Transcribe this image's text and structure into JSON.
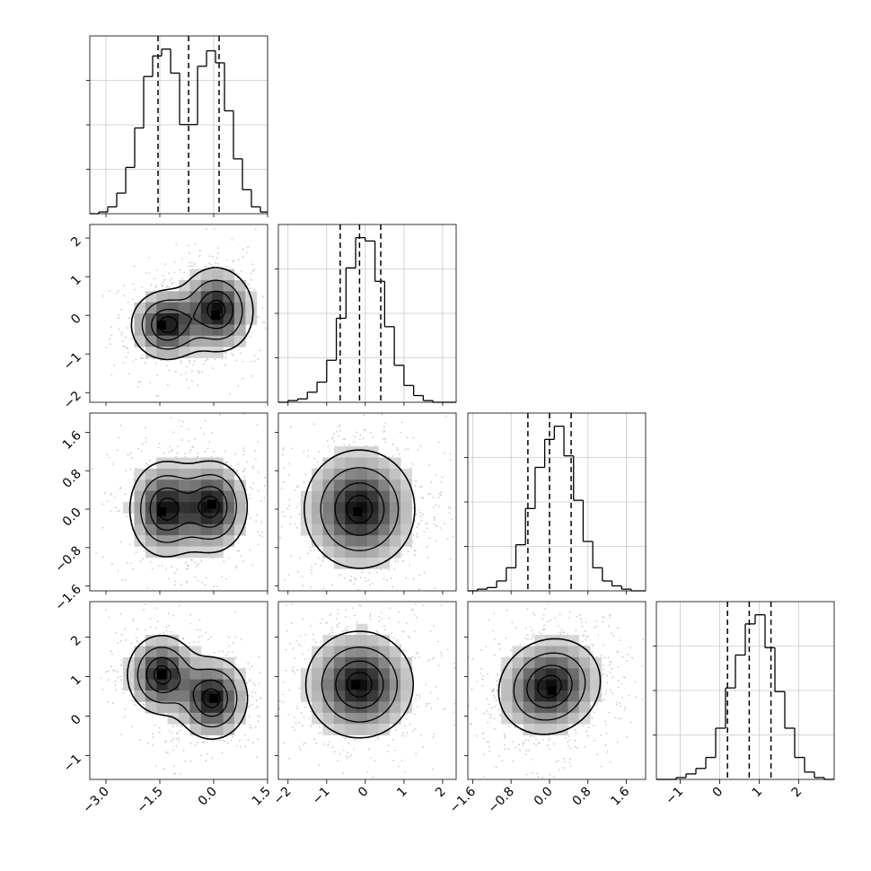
{
  "chart_data": {
    "type": "corner",
    "title": "",
    "grid": true,
    "n_params": 4,
    "params": [
      {
        "label": "",
        "range": [
          -3.45,
          1.5
        ],
        "ticks": [
          "-3.0",
          "-1.5",
          "0.0",
          "1.5"
        ],
        "tick_values": [
          -3.0,
          -1.5,
          0.0,
          1.5
        ],
        "quantiles": [
          -1.55,
          -0.7,
          0.15
        ],
        "hist_edges": [
          -3.45,
          -3.2,
          -2.95,
          -2.7,
          -2.45,
          -2.2,
          -1.95,
          -1.7,
          -1.45,
          -1.2,
          -0.95,
          -0.7,
          -0.45,
          -0.2,
          0.05,
          0.3,
          0.55,
          0.8,
          1.05,
          1.3,
          1.5
        ],
        "hist_counts": [
          0,
          1,
          4,
          12,
          27,
          50,
          80,
          92,
          96,
          82,
          52,
          52,
          86,
          95,
          88,
          60,
          32,
          14,
          4,
          1
        ]
      },
      {
        "label": "",
        "range": [
          -2.25,
          2.35
        ],
        "ticks": [
          "-2",
          "-1",
          "0",
          "1",
          "2"
        ],
        "tick_values": [
          -2,
          -1,
          0,
          1,
          2
        ],
        "quantiles": [
          -0.65,
          -0.15,
          0.4
        ],
        "hist_edges": [
          -2.25,
          -2.0,
          -1.75,
          -1.5,
          -1.25,
          -1.0,
          -0.75,
          -0.5,
          -0.25,
          0.0,
          0.25,
          0.5,
          0.75,
          1.0,
          1.25,
          1.5,
          1.75,
          2.0,
          2.35
        ],
        "hist_counts": [
          0,
          1,
          2,
          6,
          12,
          25,
          50,
          80,
          98,
          96,
          72,
          45,
          22,
          10,
          4,
          1,
          0,
          0
        ]
      },
      {
        "label": "",
        "range": [
          -1.7,
          2.0
        ],
        "ticks": [
          "-1.6",
          "-0.8",
          "0.0",
          "0.8",
          "1.6"
        ],
        "tick_values": [
          -1.6,
          -0.8,
          0.0,
          0.8,
          1.6
        ],
        "quantiles": [
          -0.45,
          0.0,
          0.45
        ],
        "hist_edges": [
          -1.7,
          -1.5,
          -1.3,
          -1.1,
          -0.9,
          -0.7,
          -0.5,
          -0.3,
          -0.1,
          0.1,
          0.3,
          0.5,
          0.7,
          0.9,
          1.1,
          1.3,
          1.5,
          1.7,
          2.0
        ],
        "hist_counts": [
          0,
          1,
          2,
          6,
          14,
          28,
          50,
          75,
          92,
          100,
          82,
          55,
          30,
          14,
          6,
          3,
          1,
          0
        ]
      },
      {
        "label": "",
        "range": [
          -1.6,
          2.9
        ],
        "ticks": [
          "-1",
          "0",
          "1",
          "2"
        ],
        "tick_values": [
          -1,
          0,
          1,
          2
        ],
        "quantiles": [
          0.2,
          0.75,
          1.3
        ],
        "hist_edges": [
          -1.6,
          -1.35,
          -1.1,
          -0.85,
          -0.6,
          -0.35,
          -0.1,
          0.15,
          0.4,
          0.65,
          0.9,
          1.15,
          1.4,
          1.65,
          1.9,
          2.15,
          2.4,
          2.65,
          2.9
        ],
        "hist_counts": [
          0,
          0,
          1,
          3,
          6,
          12,
          28,
          50,
          68,
          85,
          90,
          72,
          48,
          28,
          12,
          4,
          1,
          0
        ]
      }
    ],
    "two_d": [
      {
        "row": 1,
        "col": 0,
        "blobs": [
          {
            "cx": -1.3,
            "cy": -0.25,
            "rx": 0.5,
            "ry": 0.45,
            "angle": 0,
            "weight": 1.0
          },
          {
            "cx": 0.1,
            "cy": 0.15,
            "rx": 0.5,
            "ry": 0.55,
            "angle": 15,
            "weight": 1.0
          }
        ],
        "peaks": [
          {
            "x": -1.45,
            "y": -0.25
          },
          {
            "x": 0.05,
            "y": 0.0
          }
        ]
      },
      {
        "row": 2,
        "col": 0,
        "blobs": [
          {
            "cx": -1.35,
            "cy": 0.0,
            "rx": 0.5,
            "ry": 0.5,
            "angle": 0,
            "weight": 1.0
          },
          {
            "cx": -0.05,
            "cy": 0.05,
            "rx": 0.5,
            "ry": 0.48,
            "angle": 0,
            "weight": 1.0
          }
        ],
        "peaks": [
          {
            "x": -1.45,
            "y": -0.05
          },
          {
            "x": -0.05,
            "y": 0.1
          }
        ]
      },
      {
        "row": 2,
        "col": 1,
        "blobs": [
          {
            "cx": -0.15,
            "cy": 0.0,
            "rx": 0.72,
            "ry": 0.62,
            "angle": 0,
            "weight": 1.0
          }
        ],
        "peaks": [
          {
            "x": -0.2,
            "y": -0.05
          }
        ]
      },
      {
        "row": 3,
        "col": 0,
        "blobs": [
          {
            "cx": -1.45,
            "cy": 1.05,
            "rx": 0.48,
            "ry": 0.5,
            "angle": 0,
            "weight": 1.0
          },
          {
            "cx": -0.05,
            "cy": 0.45,
            "rx": 0.5,
            "ry": 0.52,
            "angle": 0,
            "weight": 1.0
          }
        ],
        "peaks": [
          {
            "x": -1.45,
            "y": 1.05
          },
          {
            "x": 0.0,
            "y": 0.45
          }
        ]
      },
      {
        "row": 3,
        "col": 1,
        "blobs": [
          {
            "cx": -0.15,
            "cy": 0.8,
            "rx": 0.7,
            "ry": 0.68,
            "angle": 0,
            "weight": 1.0
          }
        ],
        "peaks": [
          {
            "x": -0.25,
            "y": 0.8
          }
        ]
      },
      {
        "row": 3,
        "col": 2,
        "blobs": [
          {
            "cx": 0.0,
            "cy": 0.75,
            "rx": 0.52,
            "ry": 0.62,
            "angle": -20,
            "weight": 1.0
          }
        ],
        "peaks": [
          {
            "x": 0.05,
            "y": 0.65
          }
        ]
      }
    ]
  }
}
